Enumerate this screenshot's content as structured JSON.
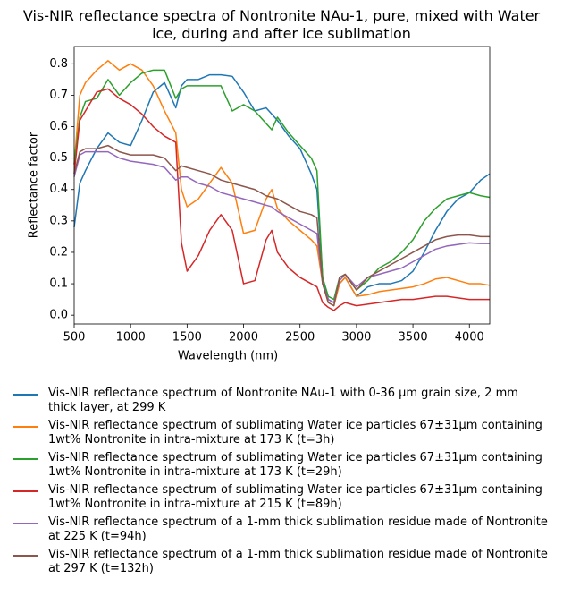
{
  "chart_data": {
    "type": "line",
    "title": "Vis-NIR reflectance spectra of Nontronite NAu-1, pure, mixed with Water ice, during and after ice sublimation",
    "xlabel": "Wavelength (nm)",
    "ylabel": "Reflectance factor",
    "x": [
      500,
      550,
      600,
      700,
      800,
      900,
      1000,
      1100,
      1200,
      1300,
      1400,
      1450,
      1500,
      1600,
      1700,
      1800,
      1900,
      2000,
      2100,
      2200,
      2250,
      2300,
      2400,
      2500,
      2600,
      2650,
      2700,
      2750,
      2800,
      2850,
      2900,
      3000,
      3100,
      3200,
      3300,
      3400,
      3500,
      3600,
      3700,
      3800,
      3900,
      4000,
      4100,
      4180
    ],
    "xlim": [
      500,
      4180
    ],
    "xticks": [
      500,
      1000,
      1500,
      2000,
      2500,
      3000,
      3500,
      4000
    ],
    "ylim": [
      -0.028,
      0.855
    ],
    "yticks": [
      {
        "value": 0,
        "label": "0.0"
      },
      0.1,
      0.2,
      0.3,
      0.4,
      0.5,
      0.6,
      0.7,
      0.8
    ],
    "legend": "below",
    "series": [
      {
        "name": "Vis-NIR reflectance spectrum of Nontronite NAu-1 with 0-36 µm grain size, 2 mm thick layer, at 299 K",
        "color": "#1f77b4",
        "values": [
          0.28,
          0.42,
          0.46,
          0.53,
          0.58,
          0.55,
          0.54,
          0.62,
          0.71,
          0.74,
          0.66,
          0.73,
          0.75,
          0.75,
          0.765,
          0.765,
          0.76,
          0.71,
          0.65,
          0.66,
          0.64,
          0.62,
          0.57,
          0.53,
          0.45,
          0.4,
          0.12,
          0.05,
          0.04,
          0.1,
          0.12,
          0.06,
          0.09,
          0.1,
          0.1,
          0.11,
          0.14,
          0.2,
          0.27,
          0.33,
          0.37,
          0.39,
          0.43,
          0.45
        ]
      },
      {
        "name": "Vis-NIR reflectance spectrum of sublimating Water ice particles 67±31µm containing 1wt% Nontronite in intra-mixture at 173 K (t=3h)",
        "color": "#ff7f0e",
        "values": [
          0.48,
          0.7,
          0.74,
          0.78,
          0.81,
          0.78,
          0.8,
          0.78,
          0.73,
          0.65,
          0.58,
          0.4,
          0.345,
          0.37,
          0.42,
          0.47,
          0.42,
          0.26,
          0.27,
          0.37,
          0.4,
          0.34,
          0.3,
          0.27,
          0.24,
          0.22,
          0.1,
          0.04,
          0.03,
          0.1,
          0.12,
          0.06,
          0.065,
          0.075,
          0.08,
          0.085,
          0.09,
          0.1,
          0.115,
          0.12,
          0.11,
          0.1,
          0.1,
          0.095
        ]
      },
      {
        "name": "Vis-NIR reflectance spectrum of sublimating Water ice particles 67±31µm containing 1wt% Nontronite in intra-mixture at 173 K (t=29h)",
        "color": "#2ca02c",
        "values": [
          0.48,
          0.63,
          0.68,
          0.69,
          0.75,
          0.7,
          0.74,
          0.77,
          0.78,
          0.78,
          0.69,
          0.72,
          0.73,
          0.73,
          0.73,
          0.73,
          0.65,
          0.67,
          0.65,
          0.61,
          0.59,
          0.63,
          0.58,
          0.54,
          0.5,
          0.46,
          0.12,
          0.06,
          0.05,
          0.12,
          0.13,
          0.08,
          0.11,
          0.15,
          0.17,
          0.2,
          0.24,
          0.3,
          0.34,
          0.37,
          0.38,
          0.39,
          0.38,
          0.375
        ]
      },
      {
        "name": "Vis-NIR reflectance spectrum of sublimating Water ice particles 67±31µm containing 1wt% Nontronite in intra-mixture at 215 K (t=89h)",
        "color": "#d62728",
        "values": [
          0.45,
          0.62,
          0.65,
          0.71,
          0.72,
          0.69,
          0.67,
          0.64,
          0.6,
          0.57,
          0.55,
          0.23,
          0.14,
          0.19,
          0.27,
          0.32,
          0.27,
          0.1,
          0.11,
          0.24,
          0.27,
          0.2,
          0.15,
          0.12,
          0.1,
          0.09,
          0.04,
          0.025,
          0.015,
          0.03,
          0.04,
          0.03,
          0.035,
          0.04,
          0.045,
          0.05,
          0.05,
          0.055,
          0.06,
          0.06,
          0.055,
          0.05,
          0.05,
          0.05
        ]
      },
      {
        "name": "Vis-NIR reflectance spectrum of a 1-mm thick sublimation residue made of Nontronite at 225 K (t=94h)",
        "color": "#9467bd",
        "values": [
          0.44,
          0.51,
          0.52,
          0.52,
          0.52,
          0.5,
          0.49,
          0.485,
          0.48,
          0.47,
          0.43,
          0.44,
          0.44,
          0.42,
          0.41,
          0.39,
          0.38,
          0.37,
          0.36,
          0.35,
          0.345,
          0.33,
          0.31,
          0.29,
          0.27,
          0.26,
          0.1,
          0.05,
          0.04,
          0.11,
          0.13,
          0.09,
          0.12,
          0.13,
          0.14,
          0.15,
          0.17,
          0.19,
          0.21,
          0.22,
          0.225,
          0.23,
          0.228,
          0.228
        ]
      },
      {
        "name": "Vis-NIR reflectance spectrum of a 1-mm thick sublimation residue made of Nontronite at 297 K (t=132h)",
        "color": "#8c564b",
        "values": [
          0.45,
          0.52,
          0.53,
          0.53,
          0.54,
          0.52,
          0.51,
          0.51,
          0.51,
          0.5,
          0.46,
          0.475,
          0.47,
          0.46,
          0.45,
          0.43,
          0.42,
          0.41,
          0.4,
          0.38,
          0.375,
          0.37,
          0.35,
          0.33,
          0.32,
          0.31,
          0.1,
          0.04,
          0.03,
          0.12,
          0.13,
          0.08,
          0.12,
          0.14,
          0.16,
          0.18,
          0.2,
          0.22,
          0.24,
          0.25,
          0.255,
          0.255,
          0.25,
          0.25
        ]
      }
    ]
  }
}
